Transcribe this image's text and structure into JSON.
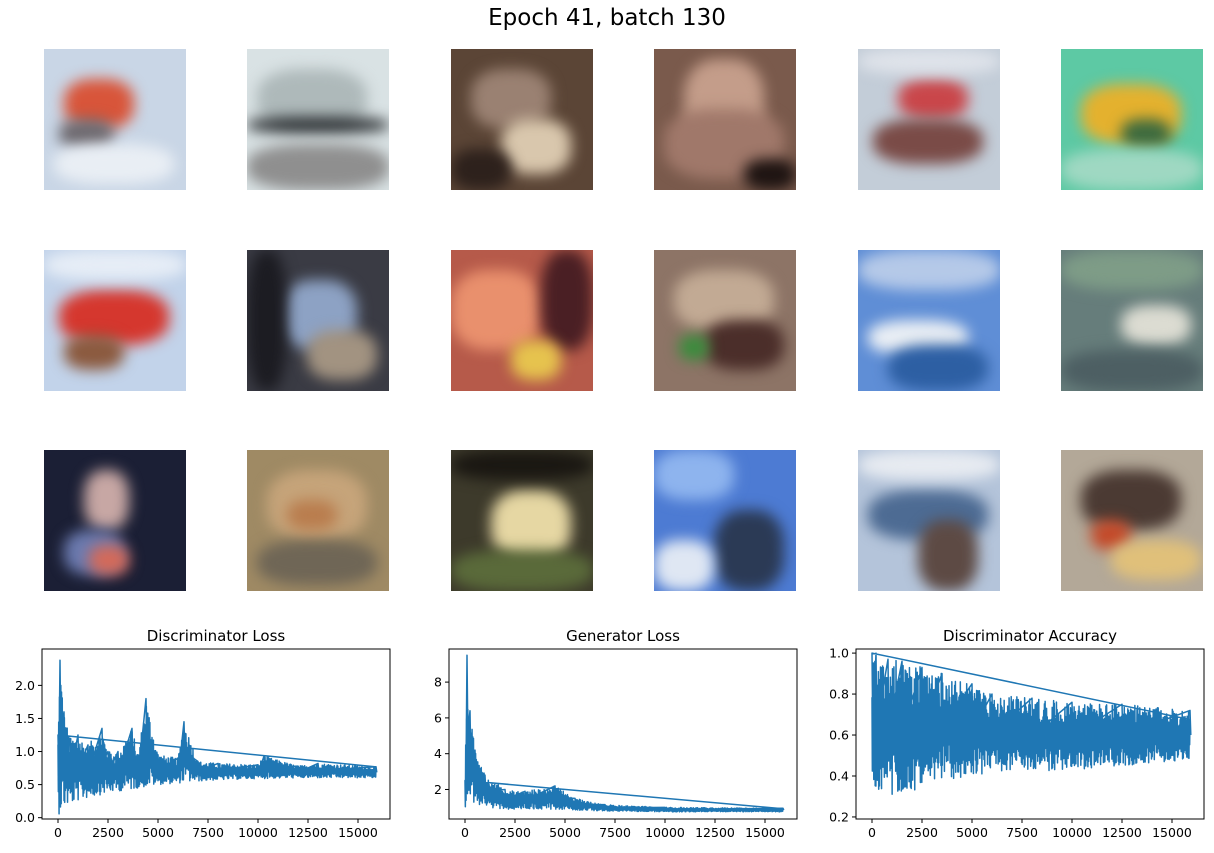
{
  "figure": {
    "title": "Epoch 41, batch 130"
  },
  "samples": [
    {
      "row": 0,
      "col": 0,
      "bg": "#c9d6e6",
      "blobs": [
        [
          "#d8553a",
          20,
          30,
          70,
          50
        ],
        [
          "#6e6a70",
          15,
          70,
          55,
          30
        ],
        [
          "#e9eef4",
          10,
          95,
          120,
          40
        ]
      ]
    },
    {
      "row": 0,
      "col": 1,
      "bg": "#d9e2e4",
      "blobs": [
        [
          "#aeb9ba",
          10,
          20,
          110,
          60
        ],
        [
          "#2c3033",
          0,
          68,
          142,
          16
        ],
        [
          "#8f8f8f",
          0,
          95,
          142,
          46
        ]
      ]
    },
    {
      "row": 0,
      "col": 2,
      "bg": "#5b4536",
      "blobs": [
        [
          "#9a8172",
          20,
          20,
          80,
          60
        ],
        [
          "#d9c7ad",
          50,
          70,
          70,
          55
        ],
        [
          "#2d211c",
          0,
          100,
          60,
          41
        ]
      ]
    },
    {
      "row": 0,
      "col": 3,
      "bg": "#7a5a4c",
      "blobs": [
        [
          "#c49d8a",
          30,
          10,
          80,
          90
        ],
        [
          "#a0786a",
          10,
          60,
          120,
          70
        ],
        [
          "#1e1412",
          90,
          110,
          52,
          31
        ]
      ]
    },
    {
      "row": 0,
      "col": 4,
      "bg": "#c3cdd8",
      "blobs": [
        [
          "#c9464a",
          40,
          30,
          70,
          40
        ],
        [
          "#7a4b47",
          15,
          70,
          110,
          45
        ],
        [
          "#dfe3ea",
          0,
          0,
          142,
          25
        ]
      ]
    },
    {
      "row": 0,
      "col": 5,
      "bg": "#5dc9a4",
      "blobs": [
        [
          "#e4b12e",
          20,
          35,
          100,
          60
        ],
        [
          "#3e6b3f",
          60,
          70,
          50,
          30
        ],
        [
          "#9fd8c2",
          0,
          100,
          142,
          41
        ]
      ]
    },
    {
      "row": 1,
      "col": 0,
      "bg": "#c2d3ea",
      "blobs": [
        [
          "#d5372e",
          15,
          40,
          110,
          55
        ],
        [
          "#8b5a3f",
          20,
          85,
          60,
          35
        ],
        [
          "#e6edf6",
          0,
          0,
          142,
          30
        ]
      ]
    },
    {
      "row": 1,
      "col": 1,
      "bg": "#3a3b44",
      "blobs": [
        [
          "#8da2c4",
          35,
          30,
          75,
          70
        ],
        [
          "#a29381",
          60,
          80,
          70,
          50
        ],
        [
          "#1c1c22",
          0,
          0,
          40,
          141
        ]
      ]
    },
    {
      "row": 1,
      "col": 2,
      "bg": "#b65a4a",
      "blobs": [
        [
          "#e9906d",
          0,
          20,
          90,
          80
        ],
        [
          "#4a1f24",
          90,
          0,
          52,
          100
        ],
        [
          "#e6c34e",
          60,
          90,
          50,
          40
        ]
      ]
    },
    {
      "row": 1,
      "col": 3,
      "bg": "#8d7466",
      "blobs": [
        [
          "#c2aa94",
          20,
          20,
          100,
          60
        ],
        [
          "#4b2e2a",
          50,
          70,
          80,
          50
        ],
        [
          "#3a8c3c",
          25,
          85,
          30,
          25
        ]
      ]
    },
    {
      "row": 1,
      "col": 4,
      "bg": "#5f8ed6",
      "blobs": [
        [
          "#e9eef4",
          10,
          70,
          100,
          35
        ],
        [
          "#2d5fa3",
          30,
          95,
          100,
          46
        ],
        [
          "#b5c9e8",
          0,
          0,
          142,
          40
        ]
      ]
    },
    {
      "row": 1,
      "col": 5,
      "bg": "#667d7b",
      "blobs": [
        [
          "#dcdcd2",
          60,
          55,
          70,
          40
        ],
        [
          "#7e9c87",
          0,
          0,
          142,
          40
        ],
        [
          "#4d5f63",
          0,
          100,
          142,
          41
        ]
      ]
    },
    {
      "row": 2,
      "col": 0,
      "bg": "#1b1f35",
      "blobs": [
        [
          "#c7a7a4",
          40,
          20,
          45,
          60
        ],
        [
          "#6c7bb0",
          20,
          80,
          60,
          45
        ],
        [
          "#d36a5a",
          45,
          95,
          40,
          30
        ]
      ]
    },
    {
      "row": 2,
      "col": 1,
      "bg": "#9f8a64",
      "blobs": [
        [
          "#c6a47a",
          20,
          20,
          100,
          70
        ],
        [
          "#6f6656",
          10,
          90,
          120,
          45
        ],
        [
          "#b97d4e",
          40,
          50,
          50,
          30
        ]
      ]
    },
    {
      "row": 2,
      "col": 2,
      "bg": "#3d3a2b",
      "blobs": [
        [
          "#e6d7a3",
          40,
          40,
          80,
          70
        ],
        [
          "#5a6a3a",
          0,
          100,
          142,
          41
        ],
        [
          "#1a1712",
          0,
          0,
          142,
          30
        ]
      ]
    },
    {
      "row": 2,
      "col": 3,
      "bg": "#4d7bd3",
      "blobs": [
        [
          "#2b3a55",
          60,
          60,
          70,
          81
        ],
        [
          "#dfe7f3",
          0,
          90,
          60,
          51
        ],
        [
          "#8eb4ee",
          0,
          0,
          80,
          50
        ]
      ]
    },
    {
      "row": 2,
      "col": 4,
      "bg": "#b4c4da",
      "blobs": [
        [
          "#4d6b93",
          10,
          40,
          120,
          50
        ],
        [
          "#5d4a44",
          60,
          70,
          60,
          71
        ],
        [
          "#e7ebf1",
          0,
          0,
          142,
          30
        ]
      ]
    },
    {
      "row": 2,
      "col": 5,
      "bg": "#b3a898",
      "blobs": [
        [
          "#4b3a33",
          20,
          20,
          100,
          60
        ],
        [
          "#c44a2a",
          30,
          70,
          40,
          30
        ],
        [
          "#e0c07a",
          50,
          90,
          90,
          40
        ]
      ]
    }
  ],
  "chart_data": [
    {
      "type": "line",
      "title": "Discriminator Loss",
      "xlim": [
        -800,
        16600
      ],
      "ylim": [
        -0.02,
        2.55
      ],
      "xticks": [
        0,
        2500,
        5000,
        7500,
        10000,
        12500,
        15000
      ],
      "yticks": [
        0.0,
        0.5,
        1.0,
        1.5,
        2.0
      ],
      "ytick_labels": [
        "0.0",
        "0.5",
        "1.0",
        "1.5",
        "2.0"
      ],
      "line_color": "#1f77b4",
      "series": [
        {
          "x_end": 15900,
          "envelope": [
            [
              0,
              0.05,
              1.25
            ],
            [
              100,
              0.06,
              2.38
            ],
            [
              300,
              0.15,
              1.6
            ],
            [
              600,
              0.2,
              1.2
            ],
            [
              1000,
              0.25,
              1.25
            ],
            [
              1500,
              0.3,
              1.1
            ],
            [
              2200,
              0.35,
              1.35
            ],
            [
              2500,
              0.38,
              1.0
            ],
            [
              3000,
              0.4,
              1.0
            ],
            [
              3700,
              0.42,
              1.35
            ],
            [
              4000,
              0.45,
              0.95
            ],
            [
              4400,
              0.45,
              1.8
            ],
            [
              5000,
              0.5,
              0.95
            ],
            [
              6000,
              0.52,
              0.9
            ],
            [
              6300,
              0.53,
              1.45
            ],
            [
              7000,
              0.55,
              0.85
            ],
            [
              8000,
              0.57,
              0.82
            ],
            [
              10000,
              0.59,
              0.8
            ],
            [
              10300,
              0.59,
              0.93
            ],
            [
              12000,
              0.6,
              0.78
            ],
            [
              13000,
              0.6,
              0.82
            ],
            [
              15900,
              0.6,
              0.77
            ]
          ]
        }
      ]
    },
    {
      "type": "line",
      "title": "Generator Loss",
      "xlim": [
        -800,
        16600
      ],
      "ylim": [
        0.35,
        9.85
      ],
      "xticks": [
        0,
        2500,
        5000,
        7500,
        10000,
        12500,
        15000
      ],
      "yticks": [
        2,
        4,
        6,
        8
      ],
      "ytick_labels": [
        "2",
        "4",
        "6",
        "8"
      ],
      "line_color": "#1f77b4",
      "series": [
        {
          "x_end": 15900,
          "envelope": [
            [
              0,
              0.8,
              2.5
            ],
            [
              100,
              1.0,
              9.5
            ],
            [
              250,
              1.2,
              6.4
            ],
            [
              500,
              1.2,
              4.2
            ],
            [
              1000,
              1.0,
              2.8
            ],
            [
              2000,
              0.9,
              2.0
            ],
            [
              3000,
              0.9,
              1.9
            ],
            [
              4500,
              0.9,
              2.2
            ],
            [
              5500,
              0.85,
              1.5
            ],
            [
              7000,
              0.8,
              1.15
            ],
            [
              10000,
              0.75,
              1.0
            ],
            [
              15900,
              0.75,
              0.95
            ]
          ]
        }
      ]
    },
    {
      "type": "line",
      "title": "Discriminator Accuracy",
      "xlim": [
        -800,
        16600
      ],
      "ylim": [
        0.19,
        1.02
      ],
      "xticks": [
        0,
        2500,
        5000,
        7500,
        10000,
        12500,
        15000
      ],
      "yticks": [
        0.2,
        0.4,
        0.6,
        0.8,
        1.0
      ],
      "ytick_labels": [
        "0.2",
        "0.4",
        "0.6",
        "0.8",
        "1.0"
      ],
      "line_color": "#1f77b4",
      "series": [
        {
          "x_end": 15900,
          "envelope": [
            [
              0,
              0.23,
              1.0
            ],
            [
              200,
              0.3,
              1.0
            ],
            [
              800,
              0.3,
              0.97
            ],
            [
              1500,
              0.3,
              0.96
            ],
            [
              2500,
              0.35,
              0.93
            ],
            [
              3500,
              0.38,
              0.9
            ],
            [
              5000,
              0.4,
              0.85
            ],
            [
              6000,
              0.42,
              0.8
            ],
            [
              8000,
              0.42,
              0.78
            ],
            [
              10000,
              0.43,
              0.76
            ],
            [
              12500,
              0.45,
              0.75
            ],
            [
              15900,
              0.48,
              0.72
            ]
          ]
        }
      ]
    }
  ]
}
